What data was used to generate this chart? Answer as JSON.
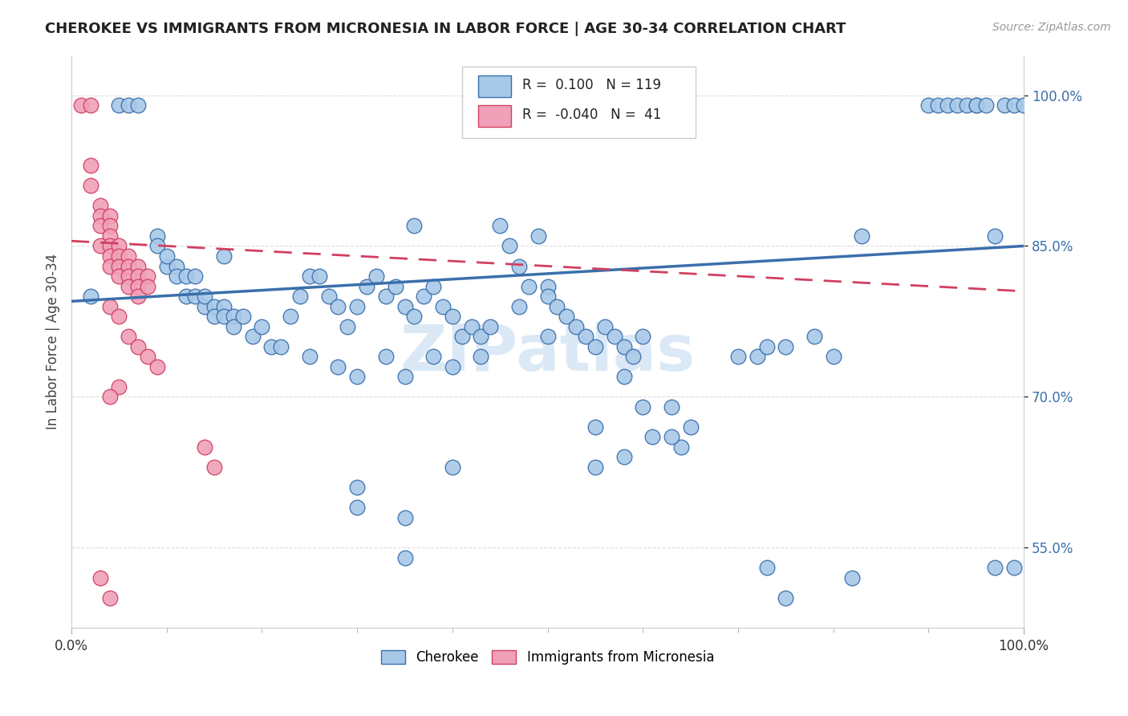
{
  "title": "CHEROKEE VS IMMIGRANTS FROM MICRONESIA IN LABOR FORCE | AGE 30-34 CORRELATION CHART",
  "source": "Source: ZipAtlas.com",
  "ylabel": "In Labor Force | Age 30-34",
  "yticks": [
    0.55,
    0.7,
    0.85,
    1.0
  ],
  "ytick_labels": [
    "55.0%",
    "70.0%",
    "85.0%",
    "100.0%"
  ],
  "legend_r_blue": "0.100",
  "legend_n_blue": "119",
  "legend_r_pink": "-0.040",
  "legend_n_pink": "41",
  "blue_color": "#a8c8e8",
  "pink_color": "#f0a0b8",
  "line_blue": "#3a6faa",
  "line_pink": "#d04060",
  "watermark": "ZIPatlas",
  "blue_scatter": [
    [
      0.02,
      0.8
    ],
    [
      0.05,
      0.99
    ],
    [
      0.06,
      0.99
    ],
    [
      0.07,
      0.99
    ],
    [
      0.09,
      0.86
    ],
    [
      0.09,
      0.85
    ],
    [
      0.1,
      0.83
    ],
    [
      0.1,
      0.84
    ],
    [
      0.11,
      0.83
    ],
    [
      0.11,
      0.82
    ],
    [
      0.12,
      0.82
    ],
    [
      0.12,
      0.8
    ],
    [
      0.13,
      0.82
    ],
    [
      0.13,
      0.8
    ],
    [
      0.14,
      0.79
    ],
    [
      0.14,
      0.8
    ],
    [
      0.15,
      0.79
    ],
    [
      0.15,
      0.78
    ],
    [
      0.16,
      0.79
    ],
    [
      0.16,
      0.78
    ],
    [
      0.17,
      0.78
    ],
    [
      0.17,
      0.77
    ],
    [
      0.18,
      0.78
    ],
    [
      0.19,
      0.76
    ],
    [
      0.2,
      0.77
    ],
    [
      0.21,
      0.75
    ],
    [
      0.22,
      0.75
    ],
    [
      0.16,
      0.84
    ],
    [
      0.23,
      0.78
    ],
    [
      0.24,
      0.8
    ],
    [
      0.25,
      0.82
    ],
    [
      0.26,
      0.82
    ],
    [
      0.27,
      0.8
    ],
    [
      0.28,
      0.79
    ],
    [
      0.29,
      0.77
    ],
    [
      0.3,
      0.79
    ],
    [
      0.31,
      0.81
    ],
    [
      0.32,
      0.82
    ],
    [
      0.33,
      0.8
    ],
    [
      0.34,
      0.81
    ],
    [
      0.35,
      0.79
    ],
    [
      0.36,
      0.78
    ],
    [
      0.37,
      0.8
    ],
    [
      0.38,
      0.81
    ],
    [
      0.39,
      0.79
    ],
    [
      0.4,
      0.78
    ],
    [
      0.41,
      0.76
    ],
    [
      0.42,
      0.77
    ],
    [
      0.43,
      0.76
    ],
    [
      0.44,
      0.77
    ],
    [
      0.36,
      0.87
    ],
    [
      0.45,
      0.87
    ],
    [
      0.46,
      0.85
    ],
    [
      0.47,
      0.83
    ],
    [
      0.48,
      0.81
    ],
    [
      0.49,
      0.86
    ],
    [
      0.5,
      0.81
    ],
    [
      0.5,
      0.8
    ],
    [
      0.51,
      0.79
    ],
    [
      0.52,
      0.78
    ],
    [
      0.53,
      0.77
    ],
    [
      0.54,
      0.76
    ],
    [
      0.55,
      0.75
    ],
    [
      0.56,
      0.77
    ],
    [
      0.57,
      0.76
    ],
    [
      0.58,
      0.75
    ],
    [
      0.59,
      0.74
    ],
    [
      0.6,
      0.76
    ],
    [
      0.47,
      0.79
    ],
    [
      0.5,
      0.76
    ],
    [
      0.3,
      0.72
    ],
    [
      0.33,
      0.74
    ],
    [
      0.35,
      0.72
    ],
    [
      0.38,
      0.74
    ],
    [
      0.4,
      0.73
    ],
    [
      0.43,
      0.74
    ],
    [
      0.25,
      0.74
    ],
    [
      0.28,
      0.73
    ],
    [
      0.61,
      0.66
    ],
    [
      0.63,
      0.69
    ],
    [
      0.64,
      0.65
    ],
    [
      0.65,
      0.67
    ],
    [
      0.3,
      0.61
    ],
    [
      0.35,
      0.58
    ],
    [
      0.4,
      0.63
    ],
    [
      0.55,
      0.67
    ],
    [
      0.58,
      0.72
    ],
    [
      0.6,
      0.69
    ],
    [
      0.63,
      0.66
    ],
    [
      0.7,
      0.74
    ],
    [
      0.72,
      0.74
    ],
    [
      0.73,
      0.75
    ],
    [
      0.75,
      0.75
    ],
    [
      0.78,
      0.76
    ],
    [
      0.8,
      0.74
    ],
    [
      0.83,
      0.86
    ],
    [
      0.9,
      0.99
    ],
    [
      0.91,
      0.99
    ],
    [
      0.92,
      0.99
    ],
    [
      0.93,
      0.99
    ],
    [
      0.94,
      0.99
    ],
    [
      0.95,
      0.99
    ],
    [
      0.95,
      0.99
    ],
    [
      0.96,
      0.99
    ],
    [
      0.97,
      0.86
    ],
    [
      0.98,
      0.99
    ],
    [
      0.99,
      0.99
    ],
    [
      1.0,
      0.99
    ],
    [
      0.3,
      0.59
    ],
    [
      0.35,
      0.54
    ],
    [
      0.55,
      0.63
    ],
    [
      0.58,
      0.64
    ],
    [
      0.73,
      0.53
    ],
    [
      0.75,
      0.5
    ],
    [
      0.82,
      0.52
    ],
    [
      0.97,
      0.53
    ],
    [
      0.99,
      0.53
    ]
  ],
  "pink_scatter": [
    [
      0.01,
      0.99
    ],
    [
      0.02,
      0.99
    ],
    [
      0.02,
      0.93
    ],
    [
      0.02,
      0.91
    ],
    [
      0.03,
      0.89
    ],
    [
      0.03,
      0.88
    ],
    [
      0.03,
      0.87
    ],
    [
      0.04,
      0.88
    ],
    [
      0.04,
      0.87
    ],
    [
      0.04,
      0.86
    ],
    [
      0.03,
      0.85
    ],
    [
      0.04,
      0.85
    ],
    [
      0.04,
      0.84
    ],
    [
      0.04,
      0.83
    ],
    [
      0.05,
      0.85
    ],
    [
      0.05,
      0.84
    ],
    [
      0.05,
      0.83
    ],
    [
      0.05,
      0.82
    ],
    [
      0.06,
      0.84
    ],
    [
      0.06,
      0.83
    ],
    [
      0.06,
      0.82
    ],
    [
      0.06,
      0.81
    ],
    [
      0.07,
      0.83
    ],
    [
      0.07,
      0.82
    ],
    [
      0.07,
      0.81
    ],
    [
      0.07,
      0.8
    ],
    [
      0.08,
      0.82
    ],
    [
      0.08,
      0.81
    ],
    [
      0.04,
      0.79
    ],
    [
      0.05,
      0.78
    ],
    [
      0.06,
      0.76
    ],
    [
      0.07,
      0.75
    ],
    [
      0.08,
      0.74
    ],
    [
      0.09,
      0.73
    ],
    [
      0.05,
      0.71
    ],
    [
      0.04,
      0.7
    ],
    [
      0.14,
      0.65
    ],
    [
      0.15,
      0.63
    ],
    [
      0.03,
      0.52
    ],
    [
      0.04,
      0.5
    ]
  ],
  "xlim": [
    0.0,
    1.0
  ],
  "ylim": [
    0.47,
    1.04
  ],
  "blue_line_start": 0.795,
  "blue_line_end": 0.85,
  "pink_line_start": 0.855,
  "pink_line_end": 0.805
}
